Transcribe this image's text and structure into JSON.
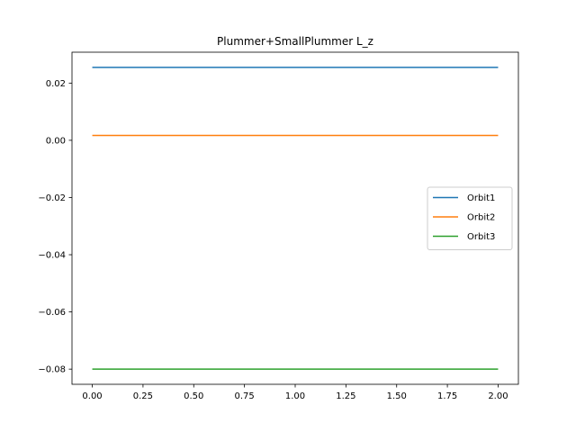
{
  "chart_data": {
    "type": "line",
    "title": "Plummer+SmallPlummer L_z",
    "xlabel": "",
    "ylabel": "",
    "xlim": [
      -0.1,
      2.1
    ],
    "ylim": [
      -0.0853,
      0.0308
    ],
    "grid": false,
    "legend_position": "center-right",
    "x_ticks": [
      0.0,
      0.25,
      0.5,
      0.75,
      1.0,
      1.25,
      1.5,
      1.75,
      2.0
    ],
    "x_tick_labels": [
      "0.00",
      "0.25",
      "0.50",
      "0.75",
      "1.00",
      "1.25",
      "1.50",
      "1.75",
      "2.00"
    ],
    "y_ticks": [
      -0.08,
      -0.06,
      -0.04,
      -0.02,
      0.0,
      0.02
    ],
    "y_tick_labels": [
      "−0.08",
      "−0.06",
      "−0.04",
      "−0.02",
      "0.00",
      "0.02"
    ],
    "series": [
      {
        "name": "Orbit1",
        "color": "#1f77b4",
        "x": [
          0.0,
          2.0
        ],
        "y": [
          0.0255,
          0.0255
        ]
      },
      {
        "name": "Orbit2",
        "color": "#ff7f0e",
        "x": [
          0.0,
          2.0
        ],
        "y": [
          0.0017,
          0.0017
        ]
      },
      {
        "name": "Orbit3",
        "color": "#2ca02c",
        "x": [
          0.0,
          2.0
        ],
        "y": [
          -0.08,
          -0.08
        ]
      }
    ]
  }
}
